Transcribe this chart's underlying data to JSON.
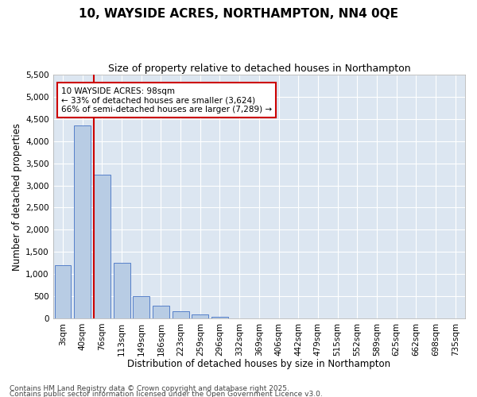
{
  "title": "10, WAYSIDE ACRES, NORTHAMPTON, NN4 0QE",
  "subtitle": "Size of property relative to detached houses in Northampton",
  "xlabel": "Distribution of detached houses by size in Northampton",
  "ylabel": "Number of detached properties",
  "categories": [
    "3sqm",
    "40sqm",
    "76sqm",
    "113sqm",
    "149sqm",
    "186sqm",
    "223sqm",
    "259sqm",
    "296sqm",
    "332sqm",
    "369sqm",
    "406sqm",
    "442sqm",
    "479sqm",
    "515sqm",
    "552sqm",
    "589sqm",
    "625sqm",
    "662sqm",
    "698sqm",
    "735sqm"
  ],
  "values": [
    1200,
    4350,
    3250,
    1260,
    500,
    290,
    150,
    80,
    30,
    5,
    2,
    1,
    0,
    0,
    0,
    0,
    0,
    0,
    0,
    0,
    0
  ],
  "bar_color": "#b8cce4",
  "bar_edge_color": "#4472c4",
  "plot_bg_color": "#dce6f1",
  "fig_bg_color": "#ffffff",
  "grid_color": "#ffffff",
  "vline_color": "#cc0000",
  "vline_xindex": 2.5,
  "annotation_text": "10 WAYSIDE ACRES: 98sqm\n← 33% of detached houses are smaller (3,624)\n66% of semi-detached houses are larger (7,289) →",
  "annotation_box_edgecolor": "#cc0000",
  "ylim_max": 5500,
  "ytick_step": 500,
  "footer_line1": "Contains HM Land Registry data © Crown copyright and database right 2025.",
  "footer_line2": "Contains public sector information licensed under the Open Government Licence v3.0.",
  "title_fontsize": 11,
  "subtitle_fontsize": 9,
  "axis_label_fontsize": 8.5,
  "tick_fontsize": 7.5,
  "annotation_fontsize": 7.5,
  "footer_fontsize": 6.5
}
